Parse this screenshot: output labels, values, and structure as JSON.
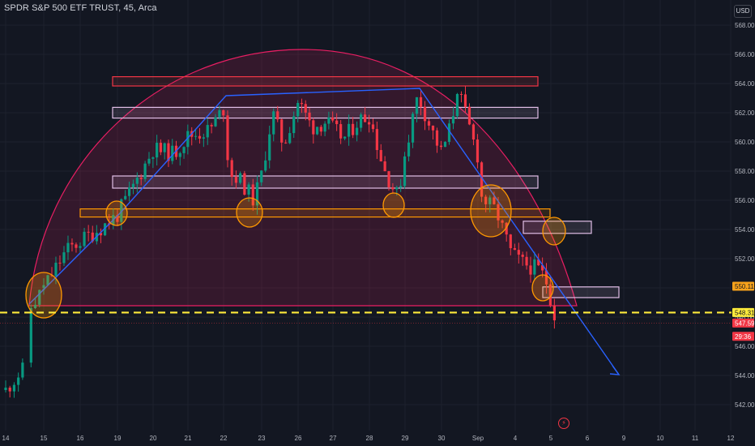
{
  "header": {
    "title": "SPDR S&P 500 ETF TRUST, 45, Arca"
  },
  "currency": "USD",
  "chart_data": {
    "type": "candlestick",
    "title": "SPDR S&P 500 ETF TRUST",
    "interval": "45",
    "exchange": "Arca",
    "ylim": [
      540.5,
      569.5
    ],
    "y_ticks": [
      542,
      544,
      546,
      548,
      550,
      552,
      554,
      556,
      558,
      560,
      562,
      564,
      566,
      568
    ],
    "x_ticks": [
      "14",
      "15",
      "16",
      "19",
      "20",
      "21",
      "22",
      "23",
      "26",
      "27",
      "28",
      "29",
      "30",
      "Sep",
      "4",
      "5",
      "6",
      "9",
      "10",
      "11",
      "12"
    ],
    "price_labels": [
      {
        "text": "550.11",
        "value": 550.11,
        "color": "#f7a21b"
      },
      {
        "text": "548.31",
        "value": 548.31,
        "color": "#ffeb3b"
      },
      {
        "text": "547.59",
        "value": 547.59,
        "color": "#f23645"
      },
      {
        "text": "29:36",
        "value": 546.9,
        "color": "#f23645"
      }
    ],
    "candles_sample": [
      {
        "session": "Aug 14",
        "open": 543.0,
        "close": 544.1
      },
      {
        "session": "Aug 15",
        "open": 548.6,
        "close": 551.3
      },
      {
        "session": "Aug 21",
        "open": 559.7,
        "close": 560.6
      },
      {
        "session": "Aug 23",
        "open": 557.5,
        "close": 561.0
      },
      {
        "session": "Aug 26",
        "open": 562.3,
        "close": 563.7
      },
      {
        "session": "Aug 29",
        "open": 556.0,
        "close": 559.5
      },
      {
        "session": "Aug 30",
        "open": 560.0,
        "close": 564.0
      },
      {
        "session": "Sep 3",
        "open": 560.5,
        "close": 556.2
      },
      {
        "session": "Sep 5",
        "open": 550.3,
        "close": 547.6
      }
    ],
    "annotations": {
      "resistance_zones": [
        {
          "low": 564.0,
          "high": 564.3,
          "color": "#f23645"
        },
        {
          "low": 561.8,
          "high": 562.2,
          "color": "#e1bee7"
        },
        {
          "low": 557.0,
          "high": 557.5,
          "color": "#e1bee7"
        },
        {
          "low": 549.5,
          "high": 549.9,
          "color": "#e1bee7"
        },
        {
          "low": 553.9,
          "high": 554.4,
          "color": "#e1bee7"
        }
      ],
      "support_zone": {
        "low": 555.0,
        "high": 555.3,
        "color": "#ff9800"
      },
      "neckline": {
        "value": 548.31,
        "color": "#ffeb3b",
        "style": "dashed"
      },
      "rounded_top_color": "#e91e63",
      "trendline_color": "#2962ff"
    }
  }
}
